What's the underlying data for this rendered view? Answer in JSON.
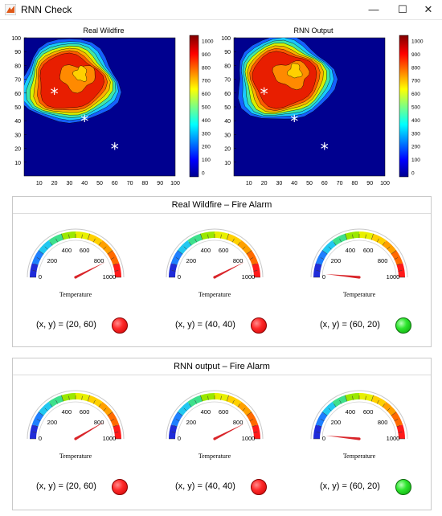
{
  "window": {
    "title": "RNN Check",
    "minimize": "—",
    "maximize": "☐",
    "close": "✕"
  },
  "colors": {
    "field_low": "#00008f",
    "hot": "#e81e00",
    "lamp_red": "#ff2a2a",
    "lamp_green": "#2ee62e"
  },
  "plots": [
    {
      "title": "Real Wildfire",
      "y_ticks": [
        "100",
        "90",
        "80",
        "70",
        "60",
        "50",
        "40",
        "30",
        "20",
        "10"
      ],
      "x_ticks": [
        "10",
        "20",
        "30",
        "40",
        "50",
        "60",
        "70",
        "80",
        "90",
        "100"
      ],
      "colorbar_ticks": [
        "1000",
        "900",
        "800",
        "700",
        "600",
        "500",
        "400",
        "300",
        "200",
        "100",
        "0"
      ],
      "markers": [
        {
          "x": 20,
          "y": 60
        },
        {
          "x": 40,
          "y": 40
        },
        {
          "x": 60,
          "y": 20
        }
      ]
    },
    {
      "title": "RNN Output",
      "y_ticks": [
        "100",
        "90",
        "80",
        "70",
        "60",
        "50",
        "40",
        "30",
        "20",
        "10"
      ],
      "x_ticks": [
        "10",
        "20",
        "30",
        "40",
        "50",
        "60",
        "70",
        "80",
        "90",
        "100"
      ],
      "colorbar_ticks": [
        "1000",
        "900",
        "800",
        "700",
        "600",
        "500",
        "400",
        "300",
        "200",
        "100",
        "0"
      ],
      "markers": [
        {
          "x": 20,
          "y": 60
        },
        {
          "x": 40,
          "y": 40
        },
        {
          "x": 60,
          "y": 20
        }
      ]
    }
  ],
  "panels": [
    {
      "title": "Real Wildfire – Fire Alarm",
      "alarms": [
        {
          "coord": "(x, y) = (20, 60)",
          "value": 850,
          "status": "red"
        },
        {
          "coord": "(x, y) = (40, 40)",
          "value": 850,
          "status": "red"
        },
        {
          "coord": "(x, y) = (60, 20)",
          "value": 30,
          "status": "green"
        }
      ]
    },
    {
      "title": "RNN output – Fire Alarm",
      "alarms": [
        {
          "coord": "(x, y) = (20, 60)",
          "value": 830,
          "status": "red"
        },
        {
          "coord": "(x, y) = (40, 40)",
          "value": 850,
          "status": "red"
        },
        {
          "coord": "(x, y) = (60, 20)",
          "value": 30,
          "status": "green"
        }
      ]
    }
  ],
  "gauge": {
    "label": "Temperature",
    "ticks": [
      "0",
      "200",
      "400",
      "600",
      "800",
      "1000"
    ],
    "min": 0,
    "max": 1000
  }
}
